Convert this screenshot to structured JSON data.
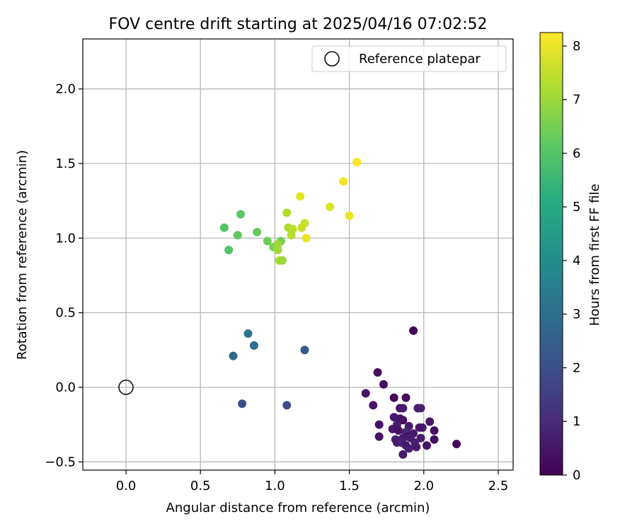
{
  "chart_data": {
    "type": "scatter",
    "title": "FOV centre drift starting at 2025/04/16 07:02:52",
    "xlabel": "Angular distance from reference (arcmin)",
    "ylabel": "Rotation from reference (arcmin)",
    "xlim": [
      -0.29,
      2.6
    ],
    "ylim": [
      -0.555,
      2.335
    ],
    "xticks": [
      "0.0",
      "0.5",
      "1.0",
      "1.5",
      "2.0",
      "2.5"
    ],
    "yticks": [
      "−0.5",
      "0.0",
      "0.5",
      "1.0",
      "1.5",
      "2.0"
    ],
    "grid": true,
    "legend": {
      "position": "top-right",
      "entries": [
        "Reference platepar"
      ]
    },
    "reference_point": {
      "x": 0.0,
      "y": 0.0,
      "marker": "hollow-circle"
    },
    "colorbar": {
      "label": "Hours from first FF file",
      "colormap": "viridis",
      "range": [
        0,
        8.25
      ],
      "ticks": [
        "0",
        "1",
        "2",
        "3",
        "4",
        "5",
        "6",
        "7",
        "8"
      ]
    },
    "series": [
      {
        "points": [
          {
            "x": 1.93,
            "y": 0.38,
            "c": 0.1
          },
          {
            "x": 1.69,
            "y": 0.1,
            "c": 0.3
          },
          {
            "x": 1.73,
            "y": 0.02,
            "c": 0.3
          },
          {
            "x": 1.61,
            "y": -0.04,
            "c": 0.4
          },
          {
            "x": 1.8,
            "y": -0.07,
            "c": 0.1
          },
          {
            "x": 1.88,
            "y": -0.07,
            "c": 0.2
          },
          {
            "x": 1.66,
            "y": -0.12,
            "c": 0.5
          },
          {
            "x": 1.84,
            "y": -0.14,
            "c": 0.4
          },
          {
            "x": 1.86,
            "y": -0.14,
            "c": 0.6
          },
          {
            "x": 1.96,
            "y": -0.14,
            "c": 0.7
          },
          {
            "x": 1.98,
            "y": -0.14,
            "c": 0.8
          },
          {
            "x": 1.8,
            "y": -0.2,
            "c": 0.6
          },
          {
            "x": 1.84,
            "y": -0.21,
            "c": 0.5
          },
          {
            "x": 1.86,
            "y": -0.22,
            "c": 0.3
          },
          {
            "x": 2.04,
            "y": -0.23,
            "c": 0.5
          },
          {
            "x": 1.7,
            "y": -0.25,
            "c": 0.4
          },
          {
            "x": 1.82,
            "y": -0.25,
            "c": 0.7
          },
          {
            "x": 1.9,
            "y": -0.26,
            "c": 0.6
          },
          {
            "x": 1.97,
            "y": -0.27,
            "c": 0.6
          },
          {
            "x": 1.99,
            "y": -0.27,
            "c": 0.5
          },
          {
            "x": 1.79,
            "y": -0.28,
            "c": 0.6
          },
          {
            "x": 1.83,
            "y": -0.29,
            "c": 0.4
          },
          {
            "x": 2.07,
            "y": -0.29,
            "c": 0.3
          },
          {
            "x": 1.88,
            "y": -0.3,
            "c": 0.8
          },
          {
            "x": 1.93,
            "y": -0.31,
            "c": 0.6
          },
          {
            "x": 1.7,
            "y": -0.33,
            "c": 0.4
          },
          {
            "x": 1.89,
            "y": -0.33,
            "c": 0.5
          },
          {
            "x": 1.86,
            "y": -0.34,
            "c": 0.6
          },
          {
            "x": 1.91,
            "y": -0.34,
            "c": 0.7
          },
          {
            "x": 1.98,
            "y": -0.34,
            "c": 0.6
          },
          {
            "x": 1.81,
            "y": -0.35,
            "c": 0.7
          },
          {
            "x": 2.07,
            "y": -0.35,
            "c": 0.3
          },
          {
            "x": 1.82,
            "y": -0.37,
            "c": 0.6
          },
          {
            "x": 1.85,
            "y": -0.37,
            "c": 0.8
          },
          {
            "x": 1.94,
            "y": -0.37,
            "c": 0.7
          },
          {
            "x": 2.22,
            "y": -0.38,
            "c": 0.2
          },
          {
            "x": 1.88,
            "y": -0.39,
            "c": 0.5
          },
          {
            "x": 1.95,
            "y": -0.4,
            "c": 0.6
          },
          {
            "x": 2.02,
            "y": -0.39,
            "c": 0.5
          },
          {
            "x": 1.9,
            "y": -0.41,
            "c": 0.7
          },
          {
            "x": 1.86,
            "y": -0.45,
            "c": 0.6
          },
          {
            "x": 0.82,
            "y": 0.36,
            "c": 3.1
          },
          {
            "x": 0.86,
            "y": 0.28,
            "c": 2.9
          },
          {
            "x": 1.2,
            "y": 0.25,
            "c": 2.3
          },
          {
            "x": 0.72,
            "y": 0.21,
            "c": 2.8
          },
          {
            "x": 0.78,
            "y": -0.11,
            "c": 2.0
          },
          {
            "x": 1.08,
            "y": -0.12,
            "c": 1.9
          },
          {
            "x": 0.77,
            "y": 1.16,
            "c": 6.1
          },
          {
            "x": 0.66,
            "y": 1.07,
            "c": 6.0
          },
          {
            "x": 0.75,
            "y": 1.02,
            "c": 6.2
          },
          {
            "x": 0.88,
            "y": 1.04,
            "c": 6.3
          },
          {
            "x": 0.69,
            "y": 0.92,
            "c": 6.0
          },
          {
            "x": 0.95,
            "y": 0.98,
            "c": 6.4
          },
          {
            "x": 1.04,
            "y": 0.98,
            "c": 6.5
          },
          {
            "x": 0.99,
            "y": 0.94,
            "c": 6.6
          },
          {
            "x": 1.02,
            "y": 0.96,
            "c": 7.0
          },
          {
            "x": 1.02,
            "y": 0.92,
            "c": 7.1
          },
          {
            "x": 1.03,
            "y": 0.85,
            "c": 7.2
          },
          {
            "x": 1.05,
            "y": 0.85,
            "c": 7.0
          },
          {
            "x": 1.08,
            "y": 1.17,
            "c": 7.3
          },
          {
            "x": 1.09,
            "y": 1.07,
            "c": 7.2
          },
          {
            "x": 1.12,
            "y": 1.06,
            "c": 7.4
          },
          {
            "x": 1.11,
            "y": 1.02,
            "c": 7.3
          },
          {
            "x": 1.17,
            "y": 1.28,
            "c": 7.9
          },
          {
            "x": 1.18,
            "y": 1.07,
            "c": 7.5
          },
          {
            "x": 1.2,
            "y": 1.1,
            "c": 7.6
          },
          {
            "x": 1.21,
            "y": 1.0,
            "c": 8.0
          },
          {
            "x": 1.37,
            "y": 1.21,
            "c": 7.8
          },
          {
            "x": 1.46,
            "y": 1.38,
            "c": 8.1
          },
          {
            "x": 1.5,
            "y": 1.15,
            "c": 8.0
          },
          {
            "x": 1.55,
            "y": 1.51,
            "c": 8.2
          }
        ]
      }
    ]
  }
}
